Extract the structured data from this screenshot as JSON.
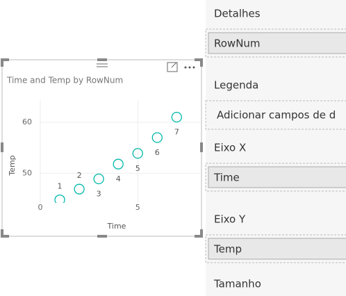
{
  "chart_data": {
    "type": "scatter",
    "title": "Time and Temp by RowNum",
    "x_label": "Time",
    "y_label": "Temp",
    "x": [
      1,
      2,
      3,
      4,
      5,
      6,
      7
    ],
    "values": [
      44.8,
      46.9,
      48.9,
      51.8,
      53.9,
      57.0,
      61.0
    ],
    "point_labels": [
      1,
      2,
      3,
      4,
      5,
      6,
      7
    ],
    "color": "#01b8aa",
    "xlim": [
      0,
      8.2
    ],
    "xticks": [
      0,
      5
    ],
    "ylim": [
      44.2,
      64.9
    ],
    "yticks": [
      50,
      60
    ],
    "grid": true
  },
  "pane": {
    "sections": [
      {
        "title": "Detalhes",
        "field": "RowNum"
      },
      {
        "title": "Legenda",
        "placeholder": "Adicionar campos de d"
      },
      {
        "title": "Eixo X",
        "field": "Time"
      },
      {
        "title": "Eixo Y",
        "field": "Temp"
      },
      {
        "title": "Tamanho"
      }
    ]
  }
}
